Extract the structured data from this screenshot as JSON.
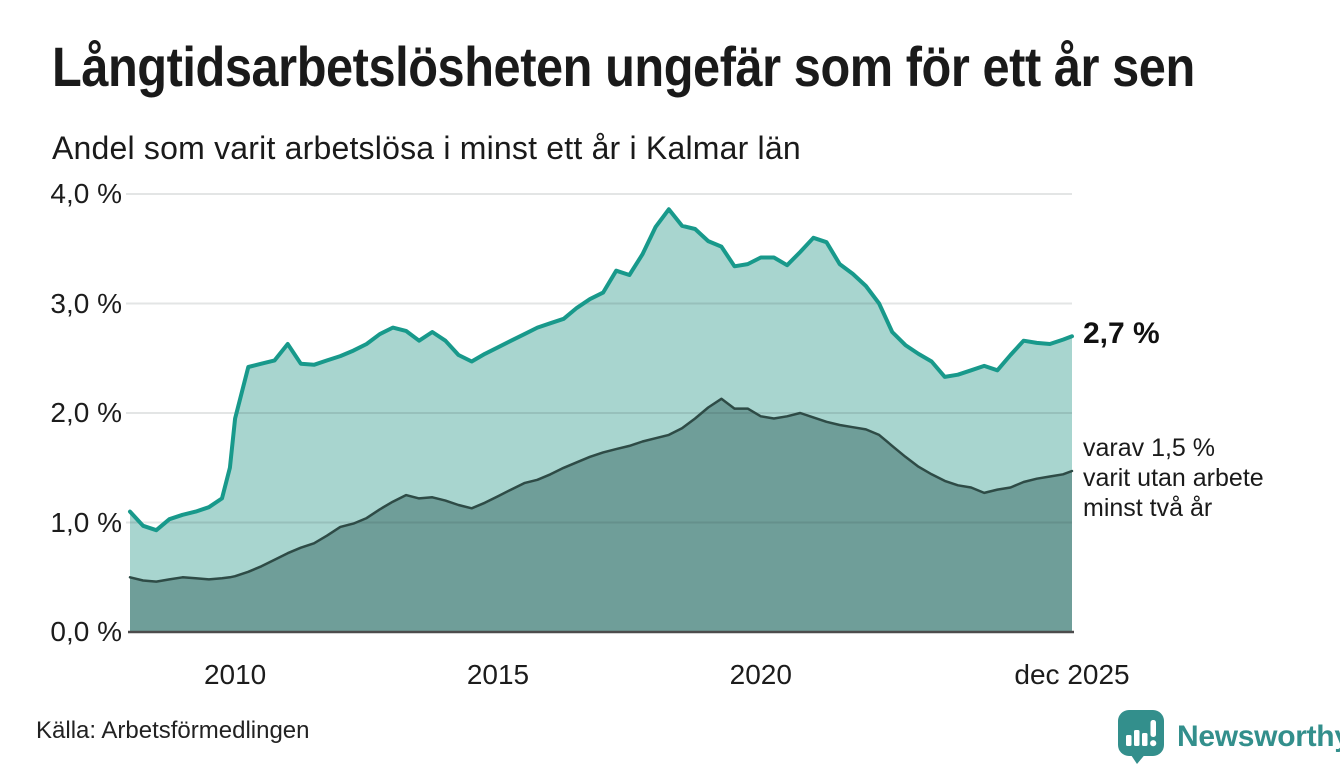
{
  "header": {
    "title": "Långtidsarbetslösheten ungefär som för ett år sen",
    "subtitle": "Andel som varit arbetslösa i minst ett år i Kalmar län"
  },
  "chart_data": {
    "type": "area",
    "title": "Långtidsarbetslösheten ungefär som för ett år sen",
    "subtitle": "Andel som varit arbetslösa i minst ett år i Kalmar län",
    "region": "Kalmar län",
    "x_unit": "år (månadsdata, decimalår)",
    "y_unit": "%",
    "xlim": [
      2008,
      2025.92
    ],
    "ylim": [
      0,
      4.0
    ],
    "grid": true,
    "y_tick_values": [
      4.0,
      3.0,
      2.0,
      1.0,
      0.0
    ],
    "y_ticks": [
      "4,0 %",
      "3,0 %",
      "2,0 %",
      "1,0 %",
      "0,0 %"
    ],
    "x_ticks": [
      {
        "label": "2010",
        "year": 2010
      },
      {
        "label": "2015",
        "year": 2015
      },
      {
        "label": "2020",
        "year": 2020
      },
      {
        "label": "dec 2025",
        "year": 2025.92
      }
    ],
    "x": [
      2008,
      2008.25,
      2008.5,
      2008.75,
      2009,
      2009.25,
      2009.5,
      2009.75,
      2009.9,
      2010,
      2010.25,
      2010.5,
      2010.75,
      2011,
      2011.25,
      2011.5,
      2011.75,
      2012,
      2012.25,
      2012.5,
      2012.75,
      2013,
      2013.25,
      2013.5,
      2013.75,
      2014,
      2014.25,
      2014.5,
      2014.75,
      2015,
      2015.25,
      2015.5,
      2015.75,
      2016,
      2016.25,
      2016.5,
      2016.75,
      2017,
      2017.25,
      2017.5,
      2017.75,
      2018,
      2018.25,
      2018.5,
      2018.75,
      2019,
      2019.25,
      2019.5,
      2019.75,
      2020,
      2020.25,
      2020.5,
      2020.75,
      2021,
      2021.25,
      2021.5,
      2021.75,
      2022,
      2022.25,
      2022.5,
      2022.75,
      2023,
      2023.25,
      2023.5,
      2023.75,
      2024,
      2024.25,
      2024.5,
      2024.75,
      2025,
      2025.25,
      2025.5,
      2025.75,
      2025.92
    ],
    "series": [
      {
        "name": "Arbetslösa minst ett år",
        "line_color": "#18998b",
        "fill_color": "#a8d5cf",
        "line_width": 4,
        "end_label": "2,7 %",
        "values": [
          1.1,
          0.97,
          0.93,
          1.03,
          1.07,
          1.1,
          1.14,
          1.22,
          1.5,
          1.95,
          2.42,
          2.45,
          2.48,
          2.63,
          2.45,
          2.44,
          2.48,
          2.52,
          2.57,
          2.63,
          2.72,
          2.78,
          2.75,
          2.66,
          2.74,
          2.66,
          2.53,
          2.47,
          2.54,
          2.6,
          2.66,
          2.72,
          2.78,
          2.82,
          2.86,
          2.96,
          3.04,
          3.1,
          3.3,
          3.26,
          3.45,
          3.7,
          3.86,
          3.71,
          3.68,
          3.57,
          3.52,
          3.34,
          3.36,
          3.42,
          3.42,
          3.35,
          3.47,
          3.6,
          3.56,
          3.36,
          3.27,
          3.16,
          3.0,
          2.74,
          2.62,
          2.54,
          2.47,
          2.33,
          2.35,
          2.39,
          2.43,
          2.39,
          2.53,
          2.66,
          2.64,
          2.63,
          2.67,
          2.7
        ]
      },
      {
        "name": "varav utan arbete minst två år",
        "line_color": "#2e4b46",
        "fill_color": "#6f9e99",
        "line_width": 2.5,
        "end_label": "varav 1,5 % varit utan arbete minst två år",
        "values": [
          0.5,
          0.47,
          0.46,
          0.48,
          0.5,
          0.49,
          0.48,
          0.49,
          0.5,
          0.51,
          0.55,
          0.6,
          0.66,
          0.72,
          0.77,
          0.81,
          0.88,
          0.96,
          0.99,
          1.04,
          1.12,
          1.19,
          1.25,
          1.22,
          1.23,
          1.2,
          1.16,
          1.13,
          1.18,
          1.24,
          1.3,
          1.36,
          1.39,
          1.44,
          1.5,
          1.55,
          1.6,
          1.64,
          1.67,
          1.7,
          1.74,
          1.77,
          1.8,
          1.86,
          1.95,
          2.05,
          2.13,
          2.04,
          2.04,
          1.97,
          1.95,
          1.97,
          2.0,
          1.96,
          1.92,
          1.89,
          1.87,
          1.85,
          1.8,
          1.7,
          1.6,
          1.51,
          1.44,
          1.38,
          1.34,
          1.32,
          1.27,
          1.3,
          1.32,
          1.37,
          1.4,
          1.42,
          1.44,
          1.47
        ]
      }
    ],
    "annotations": {
      "end_value_total": "2,7 %",
      "end_note_line1": "varav 1,5 %",
      "end_note_line2": "varit utan arbete",
      "end_note_line3": "minst två år"
    },
    "legend_position": "none"
  },
  "footer": {
    "source": "Källa: Arbetsförmedlingen",
    "brand": "Newsworthy"
  },
  "colors": {
    "accent_teal": "#18998b",
    "fill_light": "#a8d5cf",
    "fill_dark": "#6f9e99",
    "line_dark": "#2e4b46",
    "gridline": "rgba(40,55,52,0.13)",
    "axis": "#4c4c4c",
    "brand_teal": "#338f8c",
    "text": "#1a1a1a"
  }
}
